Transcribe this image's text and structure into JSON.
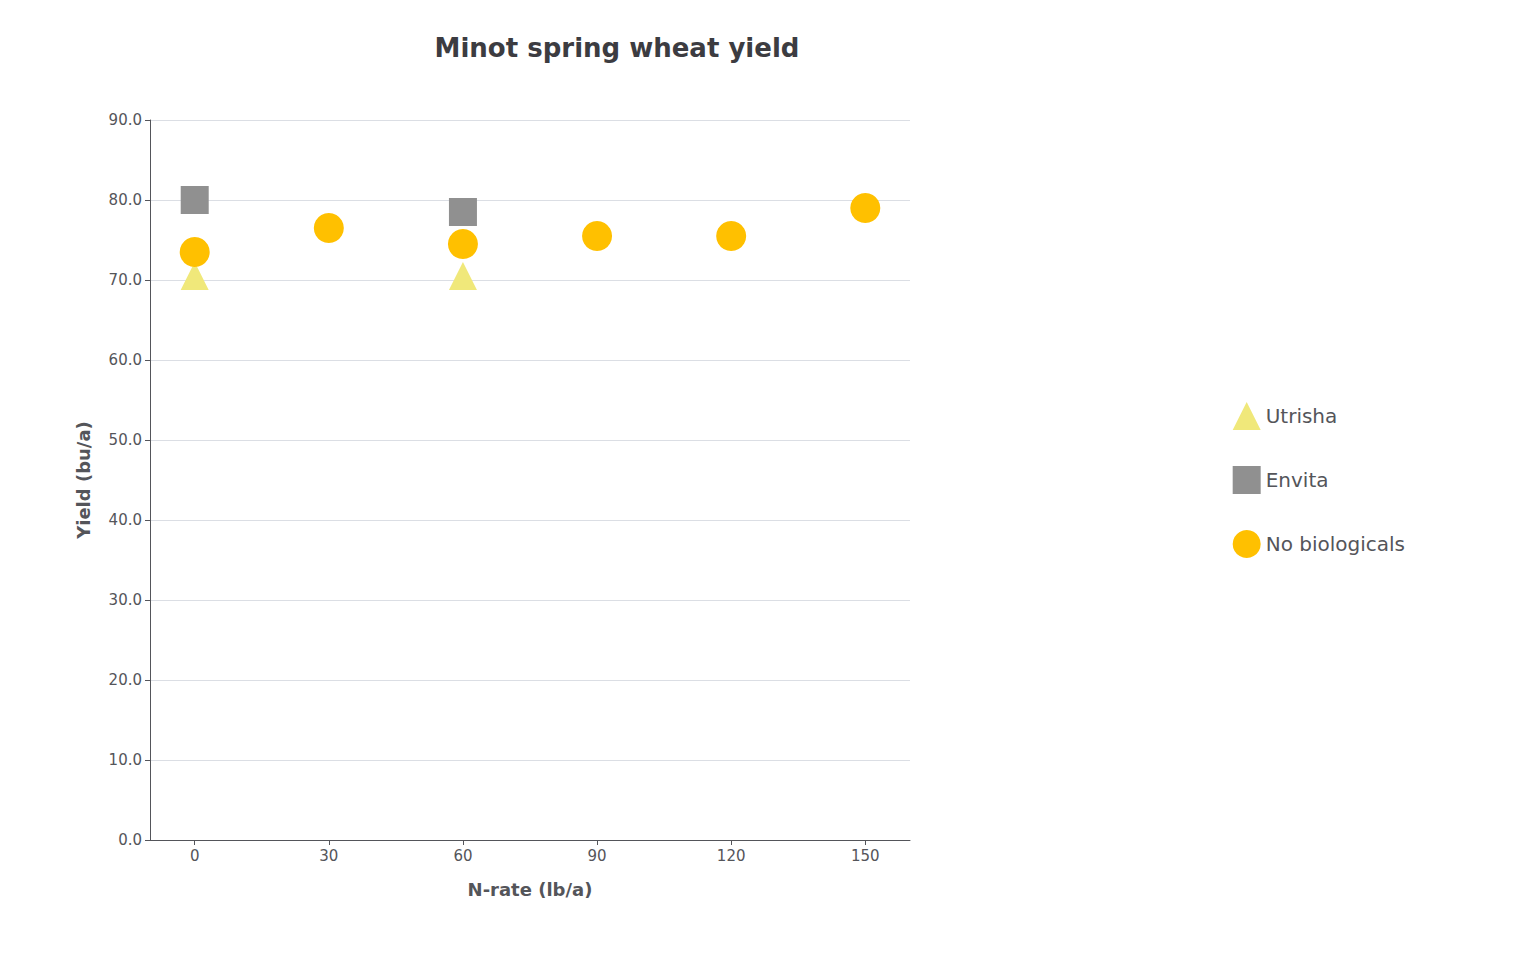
{
  "chart_data": {
    "type": "scatter",
    "title": "Minot spring wheat yield",
    "xlabel": "N-rate (lb/a)",
    "ylabel": "Yield (bu/a)",
    "series": [
      {
        "name": "Utrisha",
        "color": "#f0e87a",
        "marker": "triangle",
        "x": [
          0,
          60
        ],
        "values": [
          70.5,
          70.5
        ]
      },
      {
        "name": "Envita",
        "color": "#909090",
        "marker": "square",
        "x": [
          0,
          60
        ],
        "values": [
          80.0,
          78.5
        ]
      },
      {
        "name": "No biologicals",
        "color": "#FFC000",
        "marker": "circle",
        "x": [
          0,
          30,
          60,
          90,
          120,
          150
        ],
        "values": [
          73.5,
          76.5,
          74.5,
          75.5,
          75.5,
          79.0
        ]
      }
    ],
    "xlim": [
      -10,
      160
    ],
    "xticks": [
      0,
      30,
      60,
      90,
      120,
      150
    ],
    "ylim": [
      0.0,
      90.0
    ],
    "yticks": [
      {
        "value": 0,
        "label": "0.0"
      },
      {
        "value": 10,
        "label": "10.0"
      },
      {
        "value": 20,
        "label": "20.0"
      },
      {
        "value": 30,
        "label": "30.0"
      },
      {
        "value": 40,
        "label": "40.0"
      },
      {
        "value": 50,
        "label": "50.0"
      },
      {
        "value": 60,
        "label": "60.0"
      },
      {
        "value": 70,
        "label": "70.0"
      },
      {
        "value": 80,
        "label": "80.0"
      },
      {
        "value": 90,
        "label": "90.0"
      }
    ],
    "grid": "y",
    "legend": "right"
  }
}
